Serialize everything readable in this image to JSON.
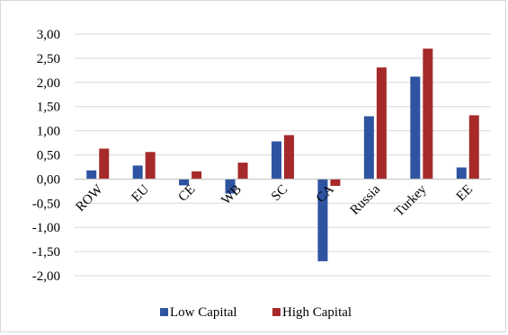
{
  "chart_data": {
    "type": "bar",
    "categories": [
      "ROW",
      "EU",
      "CE",
      "WB",
      "SC",
      "CA",
      "Russia",
      "Turkey",
      "EE"
    ],
    "series": [
      {
        "name": "Low Capital",
        "color": "#2E54A1",
        "values": [
          0.18,
          0.28,
          -0.13,
          -0.3,
          0.78,
          -1.7,
          1.3,
          2.12,
          0.24
        ]
      },
      {
        "name": "High Capital",
        "color": "#A62A2A",
        "values": [
          0.63,
          0.56,
          0.16,
          0.34,
          0.91,
          -0.14,
          2.31,
          2.7,
          1.32
        ]
      }
    ],
    "ylim": [
      -2.0,
      3.0
    ],
    "yticks": [
      "3,00",
      "2,50",
      "2,00",
      "1,50",
      "1,00",
      "0,50",
      "0,00",
      "-0,50",
      "-1,00",
      "-1,50",
      "-2,00"
    ],
    "ytick_values": [
      3.0,
      2.5,
      2.0,
      1.5,
      1.0,
      0.5,
      0.0,
      -0.5,
      -1.0,
      -1.5,
      -2.0
    ],
    "grid": true,
    "legend_position": "bottom",
    "title": "",
    "xlabel": "",
    "ylabel": ""
  }
}
